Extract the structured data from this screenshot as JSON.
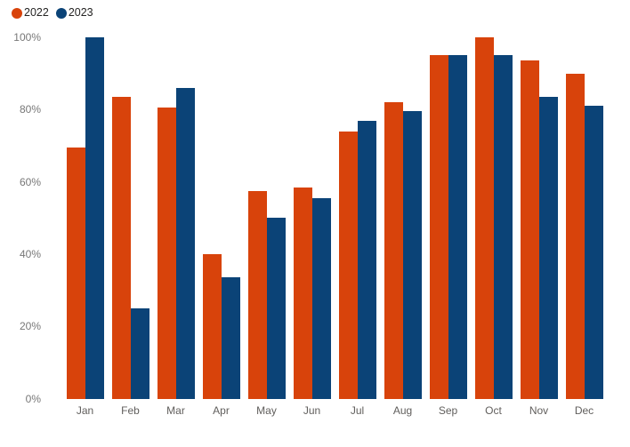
{
  "chart_data": {
    "type": "bar",
    "title": "",
    "xlabel": "",
    "ylabel": "",
    "categories": [
      "Jan",
      "Feb",
      "Mar",
      "Apr",
      "May",
      "Jun",
      "Jul",
      "Aug",
      "Sep",
      "Oct",
      "Nov",
      "Dec"
    ],
    "series": [
      {
        "name": "2022",
        "color": "#d8430b",
        "values": [
          69.5,
          83.5,
          80.5,
          40,
          57.5,
          58.5,
          74,
          82,
          95,
          100,
          93.5,
          90
        ]
      },
      {
        "name": "2023",
        "color": "#0b4377",
        "values": [
          100,
          25,
          86,
          33.5,
          50,
          55.5,
          77,
          79.5,
          95,
          95,
          83.5,
          81
        ]
      }
    ],
    "y_axis": {
      "min": 0,
      "max": 100,
      "ticks": [
        {
          "value": 0,
          "label": "0%"
        },
        {
          "value": 20,
          "label": "20%"
        },
        {
          "value": 40,
          "label": "40%"
        },
        {
          "value": 60,
          "label": "60%"
        },
        {
          "value": 80,
          "label": "80%"
        },
        {
          "value": 100,
          "label": "100%"
        }
      ]
    },
    "grid": false,
    "legend_position": "top-left"
  },
  "legend": {
    "items": [
      {
        "label": "2022",
        "color": "#d8430b",
        "marker": "circle-icon"
      },
      {
        "label": "2023",
        "color": "#0b4377",
        "marker": "circle-icon"
      }
    ]
  },
  "colors": {
    "background": "#ffffff",
    "series_2022": "#d8430b",
    "series_2023": "#0b4377",
    "y_tick_text": "#777777",
    "x_label_text": "#605e5c",
    "legend_text": "#252423"
  }
}
